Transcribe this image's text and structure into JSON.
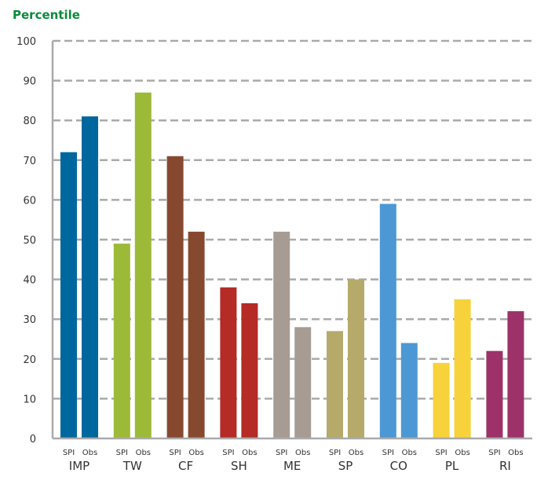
{
  "chart_data": {
    "type": "bar",
    "title": "Percentile",
    "xlabel": "",
    "ylabel": "Percentile",
    "ylim": [
      0,
      100
    ],
    "yticks": [
      "0",
      "10",
      "20",
      "30",
      "40",
      "50",
      "60",
      "70",
      "80",
      "90",
      "100"
    ],
    "grid": true,
    "categories": [
      "IMP",
      "TW",
      "CF",
      "SH",
      "ME",
      "SP",
      "CO",
      "PL",
      "RI"
    ],
    "sub_labels": [
      "SPI",
      "Obs"
    ],
    "series": [
      {
        "name": "SPI",
        "values": [
          72,
          49,
          71,
          38,
          52,
          27,
          59,
          19,
          22
        ]
      },
      {
        "name": "Obs",
        "values": [
          81,
          87,
          52,
          34,
          28,
          40,
          24,
          35,
          32
        ]
      }
    ],
    "colors": [
      "#00679e",
      "#9cba38",
      "#86492f",
      "#b52b25",
      "#a69c94",
      "#b5aa6a",
      "#4c98d4",
      "#f7d23a",
      "#9c3269"
    ]
  }
}
